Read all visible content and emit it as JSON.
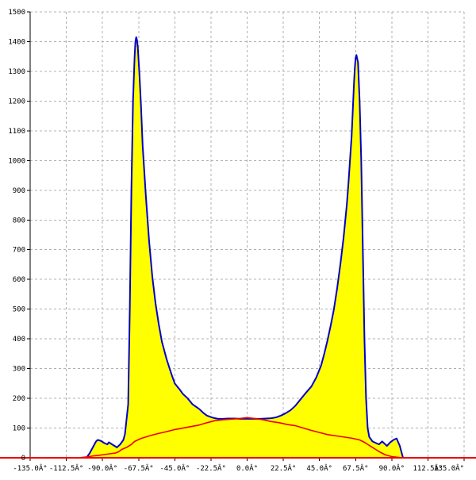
{
  "chart_data": {
    "type": "area",
    "title": "",
    "xlabel": "",
    "ylabel": "",
    "xlim": [
      -135,
      135
    ],
    "ylim": [
      0,
      1500
    ],
    "grid": true,
    "x_tick_values": [
      -135,
      -112.5,
      -90,
      -67.5,
      -45,
      -22.5,
      0,
      22.5,
      45,
      67.5,
      90,
      112.5,
      135
    ],
    "x_tick_labels": [
      "-135.0Â°",
      "-112.5Â°",
      "-90.0Â°",
      "-67.5Â°",
      "-45.0Â°",
      "-22.5Â°",
      "0.0Â°",
      "22.5Â°",
      "45.0Â°",
      "67.5Â°",
      "90.0Â°",
      "112.5Â°",
      "135.0Â°"
    ],
    "y_tick_values": [
      0,
      100,
      200,
      300,
      400,
      500,
      600,
      700,
      800,
      900,
      1000,
      1100,
      1200,
      1300,
      1400,
      1500
    ],
    "y_tick_labels": [
      "0",
      "100",
      "200",
      "300",
      "400",
      "500",
      "600",
      "700",
      "800",
      "900",
      "1000",
      "1100",
      "1200",
      "1300",
      "1400",
      "1500"
    ],
    "colors": {
      "fill": "#ffff00",
      "outline": "#0000cc",
      "inner_line": "#ee0000",
      "grid": "#b0b0b0",
      "axis": "#000000"
    },
    "series": [
      {
        "x": [
          -135,
          -100,
          -98,
          -96,
          -94,
          -93,
          -91,
          -89,
          -87,
          -86,
          -84,
          -81,
          -79,
          -77,
          -76,
          -74,
          -73,
          -72,
          -71,
          -70,
          -69.5,
          -69,
          -68.5,
          -68,
          -67,
          -66,
          -65,
          -63,
          -61,
          -59,
          -57,
          -55,
          -53,
          -50,
          -47,
          -45,
          -42,
          -40,
          -37,
          -34,
          -30,
          -27,
          -25,
          -22,
          -20,
          -18,
          -15,
          -12,
          -8,
          -4,
          0,
          4,
          8,
          12,
          15,
          18,
          21,
          24,
          27,
          30,
          33,
          36,
          40,
          43,
          46,
          48,
          50,
          52,
          54,
          56,
          58,
          60,
          62,
          63,
          64,
          65,
          65.5,
          66,
          66.5,
          67,
          67.5,
          68,
          69,
          70,
          71,
          72,
          73,
          74,
          75,
          76,
          78,
          80,
          82,
          84,
          85,
          87,
          89,
          91,
          93,
          95,
          97,
          135
        ],
        "y": [
          0,
          0,
          15,
          35,
          55,
          60,
          57,
          50,
          45,
          52,
          45,
          35,
          45,
          60,
          80,
          180,
          500,
          900,
          1200,
          1350,
          1400,
          1415,
          1405,
          1380,
          1290,
          1180,
          1050,
          880,
          730,
          610,
          520,
          450,
          390,
          330,
          280,
          250,
          230,
          215,
          200,
          180,
          165,
          150,
          142,
          136,
          133,
          131,
          131,
          132,
          132,
          131,
          131,
          131,
          131,
          132,
          133,
          136,
          142,
          150,
          160,
          175,
          195,
          215,
          240,
          270,
          310,
          350,
          395,
          445,
          500,
          570,
          650,
          740,
          850,
          920,
          1000,
          1080,
          1140,
          1200,
          1260,
          1310,
          1345,
          1355,
          1330,
          1200,
          1000,
          700,
          400,
          200,
          100,
          70,
          55,
          50,
          45,
          55,
          50,
          40,
          52,
          60,
          65,
          40,
          0,
          0
        ]
      },
      {
        "x": [
          -135,
          -105,
          -100,
          -96,
          -90,
          -86,
          -82,
          -80,
          -78,
          -75,
          -72,
          -70,
          -66,
          -60,
          -55,
          -50,
          -45,
          -40,
          -35,
          -30,
          -25,
          -20,
          -15,
          -10,
          -5,
          0,
          5,
          10,
          15,
          20,
          25,
          30,
          35,
          40,
          45,
          50,
          55,
          60,
          65,
          70,
          73,
          75,
          78,
          80,
          83,
          86,
          90,
          95,
          100,
          135
        ],
        "y": [
          0,
          0,
          3,
          6,
          10,
          13,
          16,
          20,
          28,
          35,
          45,
          55,
          65,
          75,
          82,
          88,
          95,
          100,
          105,
          110,
          118,
          125,
          128,
          130,
          132,
          135,
          132,
          128,
          122,
          118,
          112,
          108,
          100,
          92,
          85,
          78,
          74,
          70,
          66,
          60,
          52,
          45,
          35,
          28,
          18,
          10,
          4,
          1,
          0,
          0
        ]
      }
    ]
  }
}
